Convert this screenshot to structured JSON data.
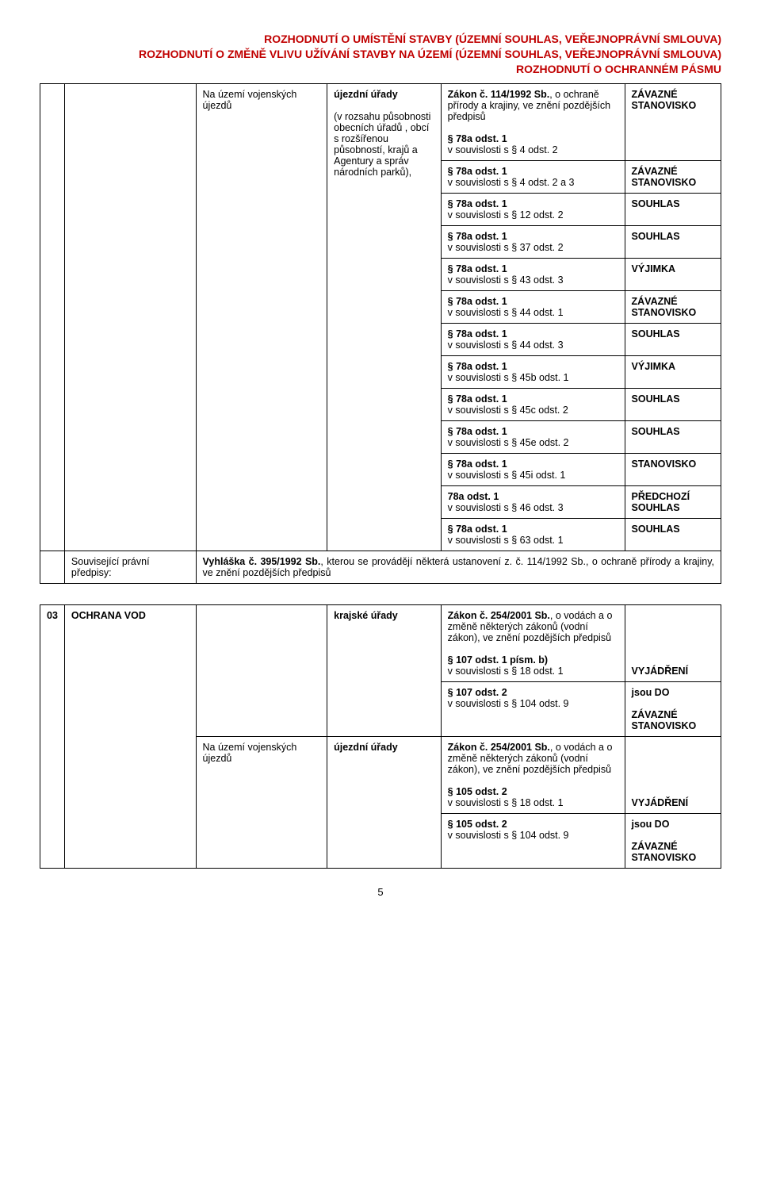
{
  "header": {
    "line1": "ROZHODNUTÍ O UMÍSTĚNÍ STAVBY (ÚZEMNÍ SOUHLAS, VEŘEJNOPRÁVNÍ SMLOUVA)",
    "line2": "ROZHODNUTÍ O ZMĚNĚ VLIVU UŽÍVÁNÍ STAVBY NA ÚZEMÍ (ÚZEMNÍ SOUHLAS, VEŘEJNOPRÁVNÍ SMLOUVA)",
    "line3": "ROZHODNUTÍ  O OCHRANNÉM PÁSMU"
  },
  "block1": {
    "area": "Na území vojenských újezdů",
    "authority_bold": "újezdní úřady",
    "authority_rest": "(v rozsahu působnosti obecních úřadů , obcí s rozšířenou působností, krajů a Agentury a správ národních parků),",
    "law_title_a": "Zákon č. 114/1992 Sb.",
    "law_title_b": ", o ochraně přírody a krajiny, ve znění pozdějších předpisů",
    "rows": [
      {
        "p_a": "§ 78a odst. 1",
        "p_b": "v souvislosti s § 4 odst. 2",
        "status": "ZÁVAZNÉ STANOVISKO"
      },
      {
        "p_a": "§ 78a odst. 1",
        "p_b": "v souvislosti s § 4 odst. 2 a 3",
        "status": "ZÁVAZNÉ STANOVISKO"
      },
      {
        "p_a": "§ 78a odst. 1",
        "p_b": "v souvislosti s § 12 odst. 2",
        "status": "SOUHLAS"
      },
      {
        "p_a": "§ 78a odst. 1",
        "p_b": "v souvislosti s § 37 odst. 2",
        "status": "SOUHLAS"
      },
      {
        "p_a": "§ 78a odst. 1",
        "p_b": "v souvislosti s § 43 odst. 3",
        "status": "VÝJIMKA"
      },
      {
        "p_a": "§ 78a odst. 1",
        "p_b": "v souvislosti s § 44 odst. 1",
        "status": "ZÁVAZNÉ STANOVISKO"
      },
      {
        "p_a": "§ 78a odst. 1",
        "p_b": "v souvislosti s § 44 odst. 3",
        "status": "SOUHLAS"
      },
      {
        "p_a": "§ 78a odst. 1",
        "p_b": "v souvislosti s § 45b odst. 1",
        "status": "VÝJIMKA"
      },
      {
        "p_a": "§ 78a odst. 1",
        "p_b": "v souvislosti s § 45c odst. 2",
        "status": "SOUHLAS"
      },
      {
        "p_a": "§ 78a odst. 1",
        "p_b": "v souvislosti s § 45e odst. 2",
        "status": "SOUHLAS"
      },
      {
        "p_a": "§ 78a odst. 1",
        "p_b": "v souvislosti s § 45i odst. 1",
        "status": "STANOVISKO"
      },
      {
        "p_a": "78a odst. 1",
        "p_b": "v souvislosti s § 46 odst. 3",
        "status": "PŘEDCHOZÍ SOUHLAS"
      },
      {
        "p_a": "§ 78a odst. 1",
        "p_b": "v souvislosti s § 63 odst. 1",
        "status": "SOUHLAS"
      }
    ]
  },
  "related": {
    "label": "Související právní předpisy:",
    "text_a": "Vyhláška č. 395/1992 Sb.",
    "text_b": ", kterou se provádějí některá ustanovení z. č. 114/1992 Sb., o ochraně přírody a krajiny, ve znění pozdějších předpisů"
  },
  "block2": {
    "num": "03",
    "topic": "OCHRANA VOD",
    "authority1": "krajské úřady",
    "law1_title_a": "Zákon č. 254/2001 Sb.",
    "law1_title_b": ", o vodách a o změně některých zákonů (vodní zákon), ve znění pozdějších předpisů",
    "rows1": [
      {
        "p_a": "§ 107 odst. 1 písm. b)",
        "p_b": "v souvislosti s § 18 odst. 1",
        "status": "VYJÁDŘENÍ"
      },
      {
        "p_a": "§ 107 odst. 2",
        "p_b": "v souvislosti s § 104 odst. 9",
        "status_a": "jsou DO",
        "status_b": "ZÁVAZNÉ STANOVISKO"
      }
    ],
    "area2": "Na území vojenských újezdů",
    "authority2": "újezdní úřady",
    "law2_title_a": "Zákon č. 254/2001 Sb.",
    "law2_title_b": ", o vodách a o změně některých zákonů (vodní zákon), ve znění pozdějších předpisů",
    "rows2": [
      {
        "p_a": "§ 105 odst. 2",
        "p_b": "v souvislosti s § 18 odst. 1",
        "status": "VYJÁDŘENÍ"
      },
      {
        "p_a": "§ 105 odst. 2",
        "p_b": "v souvislosti s § 104 odst. 9",
        "status_a": "jsou DO",
        "status_b": "ZÁVAZNÉ STANOVISKO"
      }
    ]
  },
  "page_number": "5"
}
